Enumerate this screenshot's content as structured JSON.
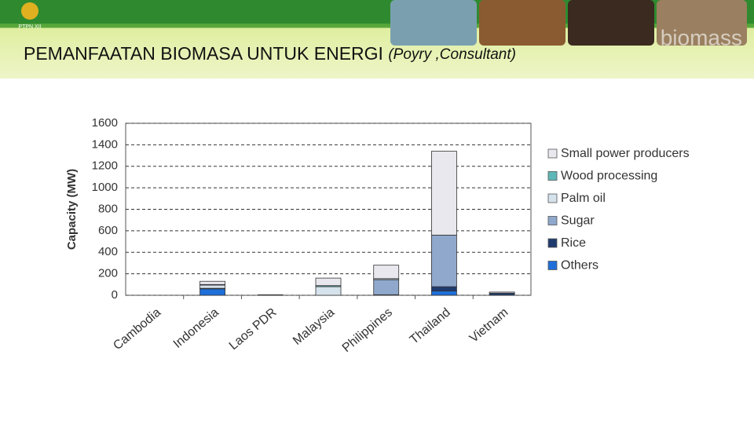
{
  "header": {
    "logo_text": "PTPN XII",
    "watermark": "biomass",
    "title": "PEMANFAATAN BIOMASA UNTUK ENERGI",
    "source": "(Poyry ,Consultant)"
  },
  "chart_data": {
    "type": "bar",
    "stacked": true,
    "y_label": "Capacity (MW)",
    "categories": [
      "Cambodia",
      "Indonesia",
      "Laos PDR",
      "Malaysia",
      "Philippines",
      "Thailand",
      "Vietnam"
    ],
    "series": [
      {
        "name": "Others",
        "color": "#1e6fd9",
        "values": [
          0,
          60,
          0,
          0,
          0,
          40,
          0
        ]
      },
      {
        "name": "Rice",
        "color": "#1f3b6e",
        "values": [
          0,
          5,
          0,
          0,
          5,
          40,
          20
        ]
      },
      {
        "name": "Sugar",
        "color": "#8fa8cc",
        "values": [
          0,
          0,
          5,
          0,
          140,
          480,
          0
        ]
      },
      {
        "name": "Palm oil",
        "color": "#d6e2ec",
        "values": [
          0,
          30,
          0,
          80,
          10,
          0,
          0
        ]
      },
      {
        "name": "Wood processing",
        "color": "#5fb8b8",
        "values": [
          0,
          5,
          0,
          10,
          0,
          0,
          0
        ]
      },
      {
        "name": "Small power producers",
        "color": "#e8e8ee",
        "values": [
          0,
          30,
          0,
          70,
          125,
          780,
          10
        ]
      }
    ],
    "ylim": [
      0,
      1600
    ],
    "yticks": [
      0,
      200,
      400,
      600,
      800,
      1000,
      1200,
      1400,
      1600
    ],
    "grid": true
  }
}
